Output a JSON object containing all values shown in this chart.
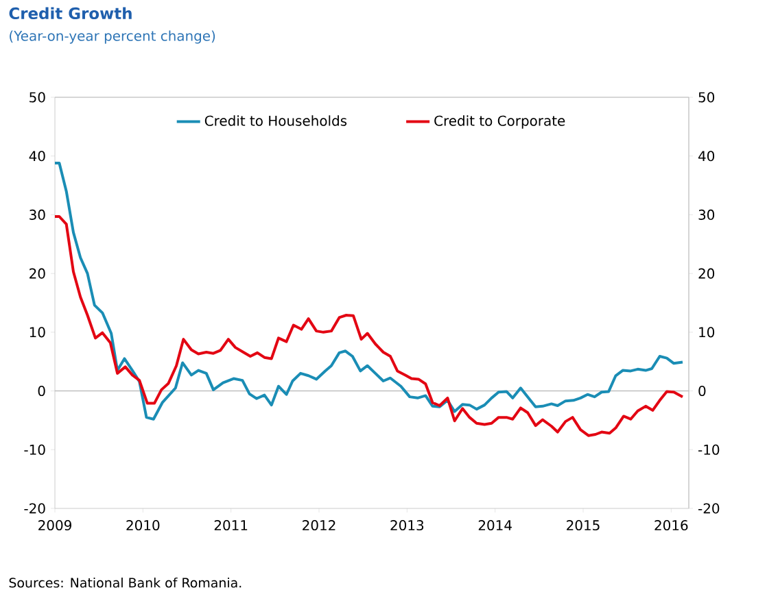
{
  "chart_data": {
    "type": "line",
    "title": "Credit Growth",
    "subtitle": "(Year-on-year percent change)",
    "annotations": [
      "Sources: National Bank of Romania."
    ],
    "xlim": [
      2009,
      2016.2
    ],
    "xticks": [
      2009,
      2010,
      2011,
      2012,
      2013,
      2014,
      2015,
      2016
    ],
    "ylim": [
      -20,
      50
    ],
    "yticks": [
      -20,
      -10,
      0,
      10,
      20,
      30,
      40,
      50
    ],
    "y2lim": [
      -20,
      50
    ],
    "y2ticks": [
      -20,
      -10,
      0,
      10,
      20,
      30,
      40,
      50
    ],
    "grid": false,
    "legend": "top",
    "marker": "none",
    "line_style": "solid",
    "ref_lines": [
      {
        "axis": "y",
        "value": 0,
        "color": "#bfbfbf"
      }
    ],
    "series": [
      {
        "name": "Credit to Households",
        "color": "#1a8db5",
        "x": [
          2009.0,
          2009.05,
          2009.13,
          2009.21,
          2009.29,
          2009.37,
          2009.45,
          2009.54,
          2009.64,
          2009.71,
          2009.79,
          2009.88,
          2009.96,
          2010.04,
          2010.12,
          2010.22,
          2010.37,
          2010.45,
          2010.55,
          2010.63,
          2010.72,
          2010.8,
          2010.91,
          2011.03,
          2011.13,
          2011.21,
          2011.29,
          2011.38,
          2011.46,
          2011.54,
          2011.63,
          2011.7,
          2011.79,
          2011.88,
          2011.97,
          2012.07,
          2012.14,
          2012.23,
          2012.3,
          2012.38,
          2012.47,
          2012.55,
          2012.64,
          2012.73,
          2012.81,
          2012.93,
          2013.03,
          2013.12,
          2013.21,
          2013.29,
          2013.37,
          2013.46,
          2013.54,
          2013.63,
          2013.71,
          2013.79,
          2013.88,
          2013.96,
          2014.04,
          2014.13,
          2014.2,
          2014.29,
          2014.37,
          2014.46,
          2014.54,
          2014.64,
          2014.71,
          2014.8,
          2014.89,
          2014.97,
          2015.05,
          2015.13,
          2015.21,
          2015.29,
          2015.37,
          2015.45,
          2015.54,
          2015.62,
          2015.71,
          2015.78,
          2015.87,
          2015.95,
          2016.03,
          2016.13
        ],
        "values": [
          38.8,
          38.8,
          34,
          27,
          22.7,
          20,
          14.6,
          13.3,
          9.8,
          3.5,
          5.5,
          3.5,
          1.6,
          -4.5,
          -4.8,
          -2,
          0.5,
          4.8,
          2.7,
          3.5,
          3,
          0.2,
          1.4,
          2.1,
          1.8,
          -0.5,
          -1.3,
          -0.7,
          -2.4,
          0.8,
          -0.6,
          1.7,
          3,
          2.6,
          2,
          3.4,
          4.3,
          6.5,
          6.8,
          5.9,
          3.4,
          4.3,
          3,
          1.7,
          2.2,
          0.8,
          -1,
          -1.2,
          -0.8,
          -2.6,
          -2.7,
          -1.6,
          -3.5,
          -2.3,
          -2.4,
          -3.1,
          -2.4,
          -1.2,
          -0.2,
          -0.1,
          -1.2,
          0.5,
          -1,
          -2.7,
          -2.6,
          -2.2,
          -2.5,
          -1.7,
          -1.6,
          -1.2,
          -0.6,
          -1,
          -0.2,
          -0.1,
          2.6,
          3.5,
          3.4,
          3.7,
          3.5,
          3.8,
          5.9,
          5.6,
          4.7,
          4.9
        ]
      },
      {
        "name": "Credit to Corporate",
        "color": "#e30613",
        "x": [
          2009.0,
          2009.05,
          2009.13,
          2009.21,
          2009.29,
          2009.37,
          2009.46,
          2009.54,
          2009.63,
          2009.71,
          2009.8,
          2009.88,
          2009.96,
          2010.05,
          2010.13,
          2010.21,
          2010.29,
          2010.38,
          2010.46,
          2010.55,
          2010.63,
          2010.72,
          2010.8,
          2010.88,
          2010.97,
          2011.05,
          2011.14,
          2011.22,
          2011.3,
          2011.38,
          2011.46,
          2011.54,
          2011.63,
          2011.71,
          2011.8,
          2011.88,
          2011.97,
          2012.05,
          2012.14,
          2012.23,
          2012.31,
          2012.39,
          2012.48,
          2012.55,
          2012.64,
          2012.73,
          2012.81,
          2012.89,
          2012.98,
          2013.05,
          2013.13,
          2013.21,
          2013.29,
          2013.37,
          2013.46,
          2013.54,
          2013.63,
          2013.71,
          2013.79,
          2013.88,
          2013.96,
          2014.04,
          2014.13,
          2014.2,
          2014.29,
          2014.37,
          2014.46,
          2014.54,
          2014.64,
          2014.71,
          2014.8,
          2014.88,
          2014.97,
          2015.06,
          2015.14,
          2015.21,
          2015.3,
          2015.37,
          2015.46,
          2015.54,
          2015.62,
          2015.71,
          2015.79,
          2015.87,
          2015.95,
          2016.03,
          2016.13
        ],
        "values": [
          29.7,
          29.7,
          28.4,
          20.3,
          16,
          12.9,
          9,
          9.9,
          8.2,
          3,
          4.1,
          2.7,
          1.8,
          -2.1,
          -2.1,
          0.2,
          1.3,
          4.3,
          8.8,
          7,
          6.3,
          6.6,
          6.4,
          6.9,
          8.8,
          7.4,
          6.6,
          5.9,
          6.5,
          5.7,
          5.5,
          9,
          8.4,
          11.2,
          10.5,
          12.3,
          10.2,
          10,
          10.2,
          12.5,
          12.9,
          12.8,
          8.8,
          9.8,
          8,
          6.6,
          5.9,
          3.4,
          2.7,
          2.1,
          2,
          1.2,
          -2,
          -2.5,
          -1.2,
          -5.1,
          -3,
          -4.5,
          -5.5,
          -5.7,
          -5.5,
          -4.5,
          -4.5,
          -4.8,
          -2.9,
          -3.7,
          -5.9,
          -4.9,
          -6,
          -7,
          -5.2,
          -4.5,
          -6.6,
          -7.6,
          -7.4,
          -7,
          -7.2,
          -6.3,
          -4.3,
          -4.8,
          -3.4,
          -2.6,
          -3.3,
          -1.6,
          -0.1,
          -0.2,
          -1
        ]
      }
    ]
  }
}
